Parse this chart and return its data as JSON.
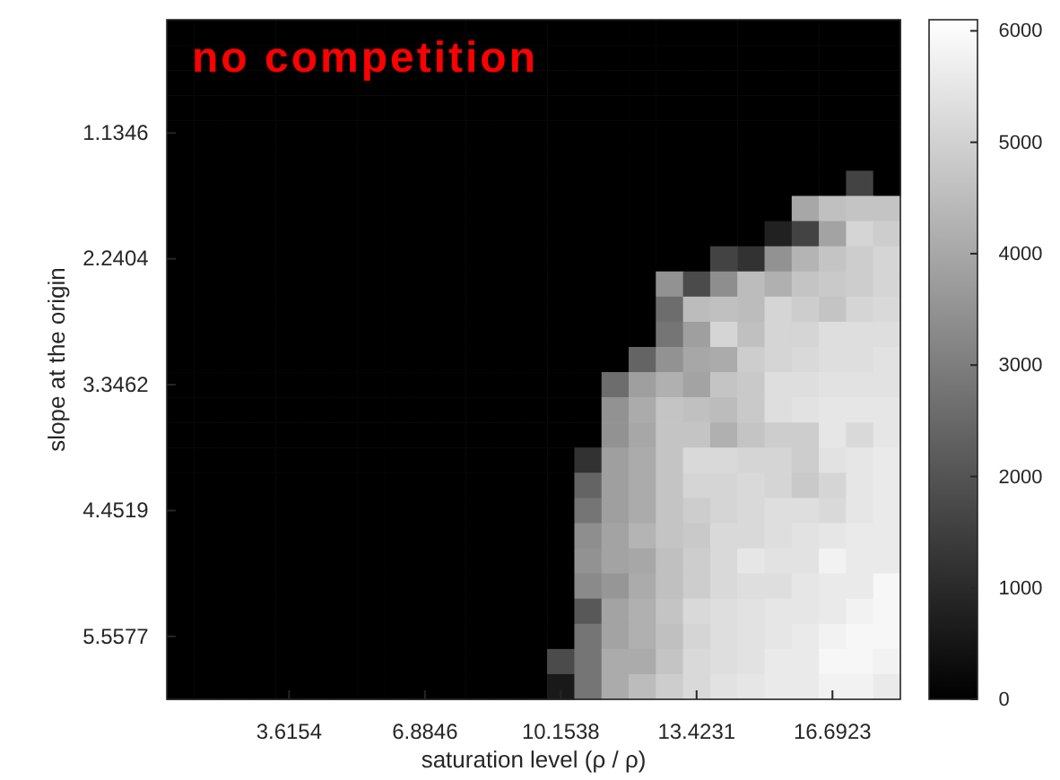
{
  "chart_data": {
    "type": "heatmap",
    "title": "no competition",
    "xlabel": "saturation level (ρ / ρ)",
    "ylabel": "slope at the origin",
    "categories": [
      null,
      null,
      null,
      null,
      "3.6154",
      null,
      null,
      null,
      null,
      "6.8846",
      null,
      null,
      null,
      null,
      "10.1538",
      null,
      null,
      null,
      null,
      "13.4231",
      null,
      null,
      null,
      null,
      "16.6923",
      null,
      null
    ],
    "y_categories": [
      null,
      null,
      null,
      null,
      "1.1346",
      null,
      null,
      null,
      null,
      "2.2404",
      null,
      null,
      null,
      null,
      "3.3462",
      null,
      null,
      null,
      null,
      "4.4519",
      null,
      null,
      null,
      null,
      "5.5577",
      null,
      null
    ],
    "clim": [
      0,
      6100
    ],
    "cticks": [
      0,
      1000,
      2000,
      3000,
      4000,
      5000,
      6000
    ],
    "cells": [
      [
        0,
        0,
        0,
        0,
        0,
        0,
        0,
        0,
        0,
        0,
        0,
        0,
        0,
        0,
        0,
        0,
        0,
        0,
        0,
        0,
        0,
        0,
        0,
        0,
        0,
        0,
        0
      ],
      [
        0,
        0,
        0,
        0,
        0,
        0,
        0,
        0,
        0,
        0,
        0,
        0,
        0,
        0,
        0,
        0,
        0,
        0,
        0,
        0,
        0,
        0,
        0,
        0,
        0,
        0,
        0
      ],
      [
        0,
        0,
        0,
        0,
        0,
        0,
        0,
        0,
        0,
        0,
        0,
        0,
        0,
        0,
        0,
        0,
        0,
        0,
        0,
        0,
        0,
        0,
        0,
        0,
        0,
        0,
        0
      ],
      [
        0,
        0,
        0,
        0,
        0,
        0,
        0,
        0,
        0,
        0,
        0,
        0,
        0,
        0,
        0,
        0,
        0,
        0,
        0,
        0,
        0,
        0,
        0,
        0,
        0,
        0,
        0
      ],
      [
        0,
        0,
        0,
        0,
        0,
        0,
        0,
        0,
        0,
        0,
        0,
        0,
        0,
        0,
        0,
        0,
        0,
        0,
        0,
        0,
        0,
        0,
        0,
        0,
        0,
        0,
        0
      ],
      [
        0,
        0,
        0,
        0,
        0,
        0,
        0,
        0,
        0,
        0,
        0,
        0,
        0,
        0,
        0,
        0,
        0,
        0,
        0,
        0,
        0,
        0,
        0,
        0,
        0,
        0,
        0
      ],
      [
        0,
        0,
        0,
        0,
        0,
        0,
        0,
        0,
        0,
        0,
        0,
        0,
        0,
        0,
        0,
        0,
        0,
        0,
        0,
        0,
        0,
        0,
        0,
        0,
        0,
        1600,
        0
      ],
      [
        0,
        0,
        0,
        0,
        0,
        0,
        0,
        0,
        0,
        0,
        0,
        0,
        0,
        0,
        0,
        0,
        0,
        0,
        0,
        0,
        0,
        0,
        0,
        4000,
        4600,
        4700,
        4700
      ],
      [
        0,
        0,
        0,
        0,
        0,
        0,
        0,
        0,
        0,
        0,
        0,
        0,
        0,
        0,
        0,
        0,
        0,
        0,
        0,
        0,
        0,
        0,
        800,
        1600,
        3900,
        5100,
        4900
      ],
      [
        0,
        0,
        0,
        0,
        0,
        0,
        0,
        0,
        0,
        0,
        0,
        0,
        0,
        0,
        0,
        0,
        0,
        0,
        0,
        0,
        1600,
        1200,
        3500,
        4300,
        4700,
        4900,
        5100
      ],
      [
        0,
        0,
        0,
        0,
        0,
        0,
        0,
        0,
        0,
        0,
        0,
        0,
        0,
        0,
        0,
        0,
        0,
        0,
        3500,
        1800,
        3400,
        4500,
        4200,
        4700,
        4800,
        4900,
        5100
      ],
      [
        0,
        0,
        0,
        0,
        0,
        0,
        0,
        0,
        0,
        0,
        0,
        0,
        0,
        0,
        0,
        0,
        0,
        0,
        2600,
        4500,
        4600,
        4500,
        5100,
        4900,
        4700,
        5100,
        5200
      ],
      [
        0,
        0,
        0,
        0,
        0,
        0,
        0,
        0,
        0,
        0,
        0,
        0,
        0,
        0,
        0,
        0,
        0,
        0,
        2800,
        3800,
        5100,
        4600,
        5100,
        5100,
        5300,
        5300,
        5300
      ],
      [
        0,
        0,
        0,
        0,
        0,
        0,
        0,
        0,
        0,
        0,
        0,
        0,
        0,
        0,
        0,
        0,
        0,
        2400,
        3500,
        4000,
        4100,
        4900,
        5100,
        5200,
        5300,
        5300,
        5400
      ],
      [
        0,
        0,
        0,
        0,
        0,
        0,
        0,
        0,
        0,
        0,
        0,
        0,
        0,
        0,
        0,
        0,
        2600,
        3800,
        4200,
        3900,
        4700,
        4800,
        5300,
        5300,
        5400,
        5400,
        5400
      ],
      [
        0,
        0,
        0,
        0,
        0,
        0,
        0,
        0,
        0,
        0,
        0,
        0,
        0,
        0,
        0,
        0,
        3500,
        4100,
        4700,
        4600,
        4500,
        4800,
        5300,
        5400,
        5500,
        5500,
        5500
      ],
      [
        0,
        0,
        0,
        0,
        0,
        0,
        0,
        0,
        0,
        0,
        0,
        0,
        0,
        0,
        0,
        0,
        3500,
        4000,
        4700,
        4700,
        4200,
        4700,
        4900,
        4900,
        5500,
        5200,
        5500
      ],
      [
        0,
        0,
        0,
        0,
        0,
        0,
        0,
        0,
        0,
        0,
        0,
        0,
        0,
        0,
        0,
        1200,
        3800,
        4100,
        4700,
        5200,
        5200,
        5100,
        5100,
        4900,
        5400,
        5500,
        5600
      ],
      [
        0,
        0,
        0,
        0,
        0,
        0,
        0,
        0,
        0,
        0,
        0,
        0,
        0,
        0,
        0,
        2400,
        3800,
        4100,
        4700,
        5100,
        5100,
        5200,
        5100,
        4800,
        5100,
        5500,
        5600
      ],
      [
        0,
        0,
        0,
        0,
        0,
        0,
        0,
        0,
        0,
        0,
        0,
        0,
        0,
        0,
        0,
        2800,
        3800,
        4100,
        4700,
        4900,
        5100,
        5200,
        5300,
        5300,
        5200,
        5500,
        5600
      ],
      [
        0,
        0,
        0,
        0,
        0,
        0,
        0,
        0,
        0,
        0,
        0,
        0,
        0,
        0,
        0,
        3400,
        3900,
        4300,
        4700,
        4800,
        5200,
        5200,
        5300,
        5400,
        5500,
        5600,
        5600
      ],
      [
        0,
        0,
        0,
        0,
        0,
        0,
        0,
        0,
        0,
        0,
        0,
        0,
        0,
        0,
        0,
        3500,
        3900,
        4000,
        4600,
        4900,
        5200,
        5500,
        5400,
        5400,
        5800,
        5600,
        5600
      ],
      [
        0,
        0,
        0,
        0,
        0,
        0,
        0,
        0,
        0,
        0,
        0,
        0,
        0,
        0,
        0,
        3300,
        3600,
        4100,
        4600,
        4900,
        5200,
        5300,
        5300,
        5500,
        5600,
        5600,
        5900
      ],
      [
        0,
        0,
        0,
        0,
        0,
        0,
        0,
        0,
        0,
        0,
        0,
        0,
        0,
        0,
        0,
        2100,
        3900,
        4200,
        4700,
        5200,
        5300,
        5400,
        5500,
        5500,
        5600,
        5800,
        5900
      ],
      [
        0,
        0,
        0,
        0,
        0,
        0,
        0,
        0,
        0,
        0,
        0,
        0,
        0,
        0,
        0,
        2800,
        3900,
        4200,
        4600,
        5100,
        5300,
        5400,
        5500,
        5600,
        5800,
        5900,
        5900
      ],
      [
        0,
        0,
        0,
        0,
        0,
        0,
        0,
        0,
        0,
        0,
        0,
        0,
        0,
        0,
        1800,
        2800,
        4100,
        4100,
        4700,
        5200,
        5300,
        5400,
        5600,
        5600,
        5900,
        5900,
        5800
      ],
      [
        0,
        0,
        0,
        0,
        0,
        0,
        0,
        0,
        0,
        0,
        0,
        0,
        0,
        0,
        600,
        2800,
        4100,
        4500,
        4900,
        5200,
        5400,
        5500,
        5600,
        5600,
        5800,
        5800,
        5600
      ]
    ]
  }
}
